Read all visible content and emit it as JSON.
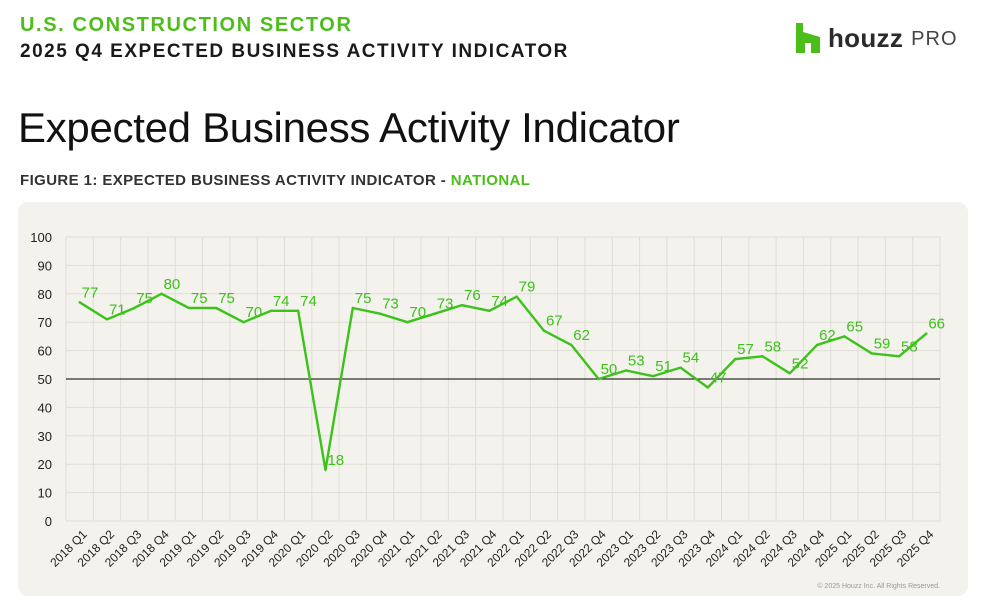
{
  "header": {
    "sector": "U.S. CONSTRUCTION SECTOR",
    "subtitle": "2025 Q4 EXPECTED BUSINESS ACTIVITY INDICATOR",
    "logo_word": "houzz",
    "logo_pro": "PRO",
    "logo_icon": "houzz-h-icon"
  },
  "page_title": "Expected Business Activity Indicator",
  "figure_caption": {
    "prefix": "FIGURE 1: EXPECTED BUSINESS ACTIVITY INDICATOR - ",
    "accent": "NATIONAL"
  },
  "copyright": "© 2025 Houzz Inc. All Rights Reserved.",
  "colors": {
    "accent": "#4dbd1a",
    "line": "#3cc21a",
    "panel": "#f4f2ed",
    "grid": "#e0ddd6",
    "reference_line": "#000000"
  },
  "chart_data": {
    "type": "line",
    "title": "",
    "xlabel": "",
    "ylabel": "",
    "ylim": [
      0,
      100
    ],
    "yticks": [
      0,
      10,
      20,
      30,
      40,
      50,
      60,
      70,
      80,
      90,
      100
    ],
    "reference_line": 50,
    "grid": true,
    "legend": "none",
    "categories": [
      "2018 Q1",
      "2018 Q2",
      "2018 Q3",
      "2018 Q4",
      "2019 Q1",
      "2019 Q2",
      "2019 Q3",
      "2019 Q4",
      "2020 Q1",
      "2020 Q2",
      "2020 Q3",
      "2020 Q4",
      "2021 Q1",
      "2021 Q2",
      "2021 Q3",
      "2021 Q4",
      "2022 Q1",
      "2022 Q2",
      "2022 Q3",
      "2022 Q4",
      "2023 Q1",
      "2023 Q2",
      "2023 Q3",
      "2023 Q4",
      "2024 Q1",
      "2024 Q2",
      "2024 Q3",
      "2024 Q4",
      "2025 Q1",
      "2025 Q2",
      "2025 Q3",
      "2025 Q4"
    ],
    "series": [
      {
        "values": [
          77,
          71,
          75,
          80,
          75,
          75,
          70,
          74,
          74,
          18,
          75,
          73,
          70,
          73,
          76,
          74,
          79,
          67,
          62,
          50,
          53,
          51,
          54,
          47,
          57,
          58,
          52,
          62,
          65,
          59,
          58,
          66
        ]
      }
    ]
  }
}
